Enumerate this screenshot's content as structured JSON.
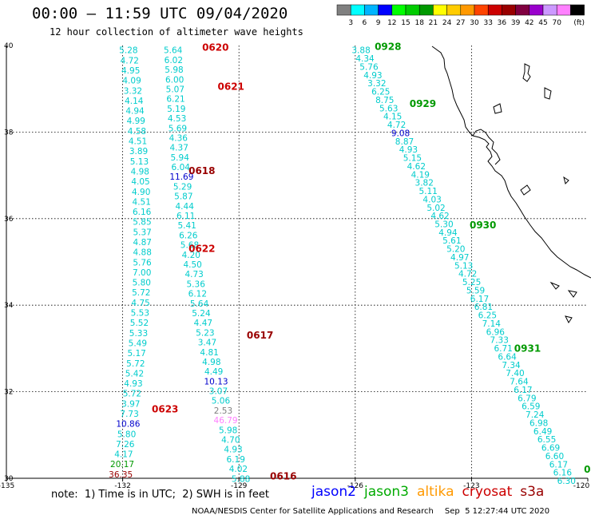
{
  "title": "00:00 – 11:59 UTC 09/04/2020",
  "subtitle": "12 hour collection of altimeter wave heights",
  "legend": {
    "colors": [
      "#808080",
      "#00ffff",
      "#00b4ff",
      "#0000ff",
      "#00ff00",
      "#00cc00",
      "#009900",
      "#ffff00",
      "#ffcc00",
      "#ff9900",
      "#ff4400",
      "#cc0000",
      "#990000",
      "#800040",
      "#9900cc",
      "#cc99ff",
      "#ff80ff",
      "#000000"
    ],
    "labels": [
      "3",
      "6",
      "9",
      "12",
      "15",
      "18",
      "21",
      "24",
      "27",
      "30",
      "33",
      "36",
      "39",
      "42",
      "45",
      "70"
    ],
    "unit": "(ft)"
  },
  "axes": {
    "lon_ticks": [
      "-135",
      "-132",
      "-129",
      "-126",
      "-123",
      "-120"
    ],
    "lat_ticks": [
      "40",
      "38",
      "36",
      "34",
      "32",
      "30"
    ]
  },
  "note": "note:  1) Time is in UTC;  2) SWH is in feet",
  "satellites": [
    {
      "name": "jason2",
      "color": "#0000ff"
    },
    {
      "name": "jason3",
      "color": "#00aa00"
    },
    {
      "name": "altika",
      "color": "#ff9900"
    },
    {
      "name": "cryosat",
      "color": "#cc0000"
    },
    {
      "name": "s3a",
      "color": "#990000"
    }
  ],
  "footer": "NOAA/NESDIS Center for Satellite Applications and Research",
  "footer_timestamp": "Sep  5 12:27:44 UTC 2020",
  "track_labels": [
    {
      "text": "0620",
      "color": "#cc0000",
      "lon": -129.95,
      "lat": 39.95
    },
    {
      "text": "0621",
      "color": "#cc0000",
      "lon": -129.55,
      "lat": 39.05
    },
    {
      "text": "0618",
      "color": "#990000",
      "lon": -130.3,
      "lat": 37.1
    },
    {
      "text": "0622",
      "color": "#cc0000",
      "lon": -130.3,
      "lat": 35.3
    },
    {
      "text": "0617",
      "color": "#990000",
      "lon": -128.8,
      "lat": 33.3
    },
    {
      "text": "0623",
      "color": "#cc0000",
      "lon": -131.25,
      "lat": 31.6
    },
    {
      "text": "0616",
      "color": "#990000",
      "lon": -128.2,
      "lat": 30.05
    },
    {
      "text": "0928",
      "color": "#009900",
      "lon": -125.5,
      "lat": 39.97
    },
    {
      "text": "0929",
      "color": "#009900",
      "lon": -124.6,
      "lat": 38.65
    },
    {
      "text": "0930",
      "color": "#009900",
      "lon": -123.05,
      "lat": 35.85
    },
    {
      "text": "0931",
      "color": "#009900",
      "lon": -121.9,
      "lat": 33.0
    },
    {
      "text": "0",
      "color": "#009900",
      "lon": -120.1,
      "lat": 30.2
    }
  ],
  "wave_tracks": [
    {
      "name": "track-0620",
      "points": [
        {
          "v": "5.64",
          "c": "#00cccc"
        },
        {
          "v": "6.02",
          "c": "#00cccc"
        },
        {
          "v": "5.98",
          "c": "#00cccc"
        },
        {
          "v": "6.00",
          "c": "#00cccc"
        },
        {
          "v": "5.07",
          "c": "#00cccc"
        },
        {
          "v": "6.21",
          "c": "#00cccc"
        },
        {
          "v": "5.19",
          "c": "#00cccc"
        },
        {
          "v": "4.53",
          "c": "#00cccc"
        },
        {
          "v": "5.69",
          "c": "#00cccc"
        },
        {
          "v": "4.36",
          "c": "#00cccc"
        },
        {
          "v": "4.37",
          "c": "#00cccc"
        },
        {
          "v": "5.94",
          "c": "#00cccc"
        },
        {
          "v": "6.04",
          "c": "#00cccc"
        },
        {
          "v": "11.69",
          "c": "#0000cc"
        },
        {
          "v": "5.29",
          "c": "#00cccc"
        },
        {
          "v": "5.87",
          "c": "#00cccc"
        },
        {
          "v": "4.44",
          "c": "#00cccc"
        },
        {
          "v": "6.11",
          "c": "#00cccc"
        },
        {
          "v": "5.41",
          "c": "#00cccc"
        },
        {
          "v": "6.26",
          "c": "#00cccc"
        },
        {
          "v": "5.68",
          "c": "#00cccc"
        },
        {
          "v": "4.20",
          "c": "#00cccc"
        },
        {
          "v": "4.50",
          "c": "#00cccc"
        },
        {
          "v": "4.73",
          "c": "#00cccc"
        },
        {
          "v": "5.36",
          "c": "#00cccc"
        },
        {
          "v": "6.12",
          "c": "#00cccc"
        },
        {
          "v": "5.64",
          "c": "#00cccc"
        },
        {
          "v": "5.24",
          "c": "#00cccc"
        },
        {
          "v": "4.47",
          "c": "#00cccc"
        },
        {
          "v": "5.23",
          "c": "#00cccc"
        },
        {
          "v": "3.47",
          "c": "#00cccc"
        },
        {
          "v": "4.81",
          "c": "#00cccc"
        },
        {
          "v": "4.98",
          "c": "#00cccc"
        },
        {
          "v": "4.49",
          "c": "#00cccc"
        },
        {
          "v": "10.13",
          "c": "#0000cc"
        },
        {
          "v": "3.07",
          "c": "#00cccc"
        },
        {
          "v": "5.06",
          "c": "#00cccc"
        },
        {
          "v": "2.53",
          "c": "#808080"
        },
        {
          "v": "46.79",
          "c": "#ff80ff"
        },
        {
          "v": "5.98",
          "c": "#00cccc"
        },
        {
          "v": "4.70",
          "c": "#00cccc"
        },
        {
          "v": "4.93",
          "c": "#00cccc"
        },
        {
          "v": "6.19",
          "c": "#00cccc"
        },
        {
          "v": "4.02",
          "c": "#00cccc"
        },
        {
          "v": "5.88",
          "c": "#00cccc"
        }
      ],
      "start": {
        "lon": -130.7,
        "lat": 39.95
      },
      "end": {
        "lon": -128.95,
        "lat": 30.05
      }
    },
    {
      "name": "track-0623",
      "points": [
        {
          "v": "5.28",
          "c": "#00cccc"
        },
        {
          "v": "4.72",
          "c": "#00cccc"
        },
        {
          "v": "4.95",
          "c": "#00cccc"
        },
        {
          "v": "4.09",
          "c": "#00cccc"
        },
        {
          "v": "3.32",
          "c": "#00cccc"
        },
        {
          "v": "4.14",
          "c": "#00cccc"
        },
        {
          "v": "4.94",
          "c": "#00cccc"
        },
        {
          "v": "4.99",
          "c": "#00cccc"
        },
        {
          "v": "4.58",
          "c": "#00cccc"
        },
        {
          "v": "4.51",
          "c": "#00cccc"
        },
        {
          "v": "3.89",
          "c": "#00cccc"
        },
        {
          "v": "5.13",
          "c": "#00cccc"
        },
        {
          "v": "4.98",
          "c": "#00cccc"
        },
        {
          "v": "4.05",
          "c": "#00cccc"
        },
        {
          "v": "4.90",
          "c": "#00cccc"
        },
        {
          "v": "4.51",
          "c": "#00cccc"
        },
        {
          "v": "6.16",
          "c": "#00cccc"
        },
        {
          "v": "5.85",
          "c": "#00cccc"
        },
        {
          "v": "5.37",
          "c": "#00cccc"
        },
        {
          "v": "4.87",
          "c": "#00cccc"
        },
        {
          "v": "4.88",
          "c": "#00cccc"
        },
        {
          "v": "5.76",
          "c": "#00cccc"
        },
        {
          "v": "7.00",
          "c": "#00cccc"
        },
        {
          "v": "5.80",
          "c": "#00cccc"
        },
        {
          "v": "5.72",
          "c": "#00cccc"
        },
        {
          "v": "4.75",
          "c": "#00cccc"
        },
        {
          "v": "5.53",
          "c": "#00cccc"
        },
        {
          "v": "5.52",
          "c": "#00cccc"
        },
        {
          "v": "5.33",
          "c": "#00cccc"
        },
        {
          "v": "5.49",
          "c": "#00cccc"
        },
        {
          "v": "5.17",
          "c": "#00cccc"
        },
        {
          "v": "5.72",
          "c": "#00cccc"
        },
        {
          "v": "5.42",
          "c": "#00cccc"
        },
        {
          "v": "4.93",
          "c": "#00cccc"
        },
        {
          "v": "5.72",
          "c": "#00cccc"
        },
        {
          "v": "3.97",
          "c": "#00cccc"
        },
        {
          "v": "7.73",
          "c": "#00cccc"
        },
        {
          "v": "10.86",
          "c": "#0000cc"
        },
        {
          "v": "5.80",
          "c": "#00cccc"
        },
        {
          "v": "7.26",
          "c": "#00cccc"
        },
        {
          "v": "4.17",
          "c": "#00cccc"
        },
        {
          "v": "20.17",
          "c": "#009900"
        },
        {
          "v": "36.35",
          "c": "#990000"
        }
      ],
      "start": {
        "lon": -131.85,
        "lat": 39.95
      },
      "end": {
        "lon": -132.05,
        "lat": 30.15
      }
    },
    {
      "name": "track-0928",
      "points": [
        {
          "v": "3.88",
          "c": "#00cccc"
        },
        {
          "v": "4.34",
          "c": "#00cccc"
        },
        {
          "v": "5.76",
          "c": "#00cccc"
        },
        {
          "v": "4.93",
          "c": "#00cccc"
        },
        {
          "v": "3.32",
          "c": "#00cccc"
        },
        {
          "v": "6.25",
          "c": "#00cccc"
        },
        {
          "v": "8.75",
          "c": "#00cccc"
        },
        {
          "v": "5.63",
          "c": "#00cccc"
        },
        {
          "v": "4.15",
          "c": "#00cccc"
        },
        {
          "v": "4.72",
          "c": "#00cccc"
        },
        {
          "v": "9.08",
          "c": "#0000cc"
        },
        {
          "v": "8.87",
          "c": "#00cccc"
        },
        {
          "v": "4.93",
          "c": "#00cccc"
        },
        {
          "v": "5.15",
          "c": "#00cccc"
        },
        {
          "v": "4.62",
          "c": "#00cccc"
        },
        {
          "v": "4.19",
          "c": "#00cccc"
        },
        {
          "v": "3.82",
          "c": "#00cccc"
        },
        {
          "v": "5.11",
          "c": "#00cccc"
        },
        {
          "v": "4.03",
          "c": "#00cccc"
        },
        {
          "v": "5.02",
          "c": "#00cccc"
        },
        {
          "v": "4.62",
          "c": "#00cccc"
        },
        {
          "v": "5.30",
          "c": "#00cccc"
        },
        {
          "v": "4.94",
          "c": "#00cccc"
        },
        {
          "v": "5.61",
          "c": "#00cccc"
        },
        {
          "v": "5.20",
          "c": "#00cccc"
        },
        {
          "v": "4.97",
          "c": "#00cccc"
        },
        {
          "v": "5.13",
          "c": "#00cccc"
        },
        {
          "v": "4.72",
          "c": "#00cccc"
        },
        {
          "v": "5.25",
          "c": "#00cccc"
        },
        {
          "v": "5.59",
          "c": "#00cccc"
        },
        {
          "v": "6.17",
          "c": "#00cccc"
        },
        {
          "v": "6.81",
          "c": "#00cccc"
        },
        {
          "v": "6.25",
          "c": "#00cccc"
        },
        {
          "v": "7.14",
          "c": "#00cccc"
        },
        {
          "v": "6.96",
          "c": "#00cccc"
        },
        {
          "v": "7.33",
          "c": "#00cccc"
        },
        {
          "v": "6.71",
          "c": "#00cccc"
        },
        {
          "v": "6.64",
          "c": "#00cccc"
        },
        {
          "v": "7.34",
          "c": "#00cccc"
        },
        {
          "v": "7.40",
          "c": "#00cccc"
        },
        {
          "v": "7.64",
          "c": "#00cccc"
        },
        {
          "v": "6.17",
          "c": "#00cccc"
        },
        {
          "v": "6.79",
          "c": "#00cccc"
        },
        {
          "v": "6.59",
          "c": "#00cccc"
        },
        {
          "v": "7.24",
          "c": "#00cccc"
        },
        {
          "v": "6.98",
          "c": "#00cccc"
        },
        {
          "v": "6.49",
          "c": "#00cccc"
        },
        {
          "v": "6.55",
          "c": "#00cccc"
        },
        {
          "v": "6.69",
          "c": "#00cccc"
        },
        {
          "v": "6.60",
          "c": "#00cccc"
        },
        {
          "v": "6.17",
          "c": "#00cccc"
        },
        {
          "v": "6.16",
          "c": "#00cccc"
        },
        {
          "v": "6.30",
          "c": "#00cccc"
        }
      ],
      "start": {
        "lon": -125.85,
        "lat": 39.95
      },
      "end": {
        "lon": -120.55,
        "lat": 30.0
      }
    }
  ]
}
